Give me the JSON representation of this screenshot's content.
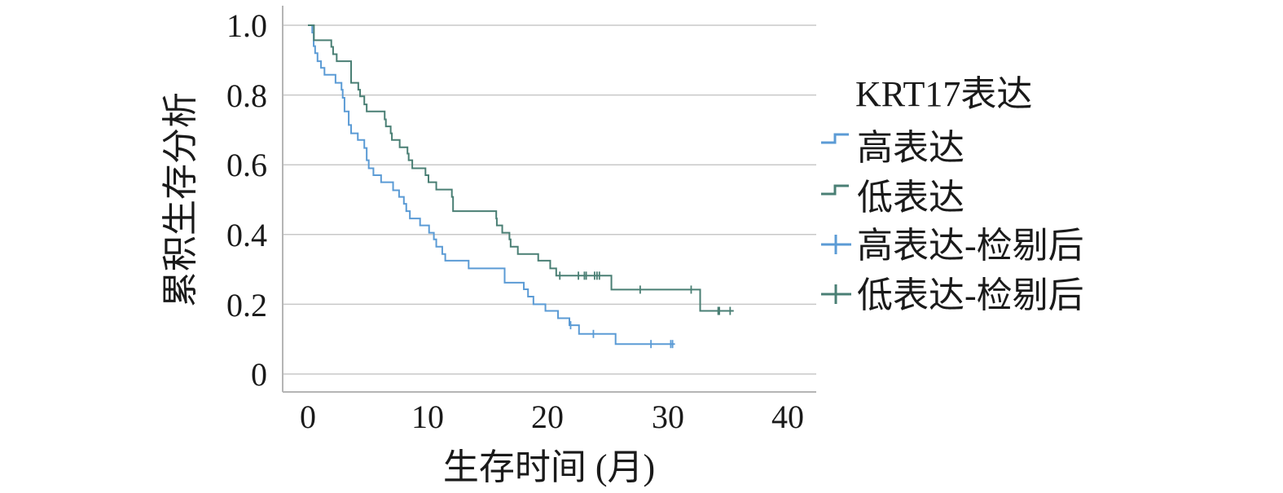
{
  "chart_data": {
    "type": "line",
    "subtype": "kaplan-meier",
    "title": "",
    "xlabel": "生存时间 (月)",
    "ylabel": "累积生存分析",
    "xlim": [
      0,
      40
    ],
    "ylim": [
      0,
      1.0
    ],
    "xticks": [
      "0",
      "10",
      "20",
      "30",
      "40"
    ],
    "yticks": [
      "0",
      "0.2",
      "0.4",
      "0.6",
      "0.8",
      "1.0"
    ],
    "grid": "horizontal",
    "legend": {
      "title": "KRT17表达",
      "placement": "right",
      "entries": [
        "高表达",
        "低表达",
        "高表达-检剔后",
        "低表达-检剔后"
      ]
    },
    "series": [
      {
        "name": "高表达",
        "color": "#5b9bd5",
        "end": 30.6,
        "steps": [
          [
            0,
            1.0
          ],
          [
            0.36,
            0.979
          ],
          [
            0.48,
            0.94
          ],
          [
            0.6,
            0.92
          ],
          [
            0.8,
            0.897
          ],
          [
            1.09,
            0.878
          ],
          [
            1.38,
            0.858
          ],
          [
            2.3,
            0.835
          ],
          [
            2.8,
            0.815
          ],
          [
            2.9,
            0.792
          ],
          [
            3.05,
            0.753
          ],
          [
            3.4,
            0.714
          ],
          [
            3.6,
            0.69
          ],
          [
            4.16,
            0.671
          ],
          [
            4.7,
            0.648
          ],
          [
            4.9,
            0.613
          ],
          [
            5.07,
            0.59
          ],
          [
            5.46,
            0.57
          ],
          [
            6.1,
            0.55
          ],
          [
            7.1,
            0.527
          ],
          [
            7.6,
            0.508
          ],
          [
            8.0,
            0.488
          ],
          [
            8.2,
            0.467
          ],
          [
            8.5,
            0.446
          ],
          [
            9.35,
            0.426
          ],
          [
            10.1,
            0.405
          ],
          [
            10.5,
            0.386
          ],
          [
            10.7,
            0.365
          ],
          [
            11.2,
            0.344
          ],
          [
            11.45,
            0.325
          ],
          [
            13.4,
            0.303
          ],
          [
            16.4,
            0.262
          ],
          [
            18.0,
            0.243
          ],
          [
            18.35,
            0.222
          ],
          [
            18.8,
            0.2
          ],
          [
            19.8,
            0.181
          ],
          [
            20.85,
            0.16
          ],
          [
            21.8,
            0.14
          ],
          [
            22.6,
            0.115
          ],
          [
            25.65,
            0.086
          ]
        ],
        "censored": [
          21.9,
          23.8,
          28.6,
          30.25,
          30.4
        ]
      },
      {
        "name": "低表达",
        "color": "#4a7f74",
        "end": 35.5,
        "steps": [
          [
            0,
            1.0
          ],
          [
            0.5,
            0.957
          ],
          [
            1.95,
            0.938
          ],
          [
            2.1,
            0.917
          ],
          [
            2.4,
            0.897
          ],
          [
            3.6,
            0.835
          ],
          [
            4.2,
            0.815
          ],
          [
            4.35,
            0.796
          ],
          [
            4.7,
            0.773
          ],
          [
            4.9,
            0.753
          ],
          [
            6.4,
            0.73
          ],
          [
            6.5,
            0.71
          ],
          [
            6.9,
            0.69
          ],
          [
            7.0,
            0.671
          ],
          [
            7.65,
            0.65
          ],
          [
            8.3,
            0.632
          ],
          [
            8.4,
            0.613
          ],
          [
            8.7,
            0.59
          ],
          [
            9.8,
            0.57
          ],
          [
            10.05,
            0.55
          ],
          [
            10.7,
            0.529
          ],
          [
            12.0,
            0.508
          ],
          [
            12.1,
            0.467
          ],
          [
            15.7,
            0.446
          ],
          [
            15.75,
            0.426
          ],
          [
            16.2,
            0.405
          ],
          [
            16.8,
            0.386
          ],
          [
            16.9,
            0.365
          ],
          [
            17.5,
            0.344
          ],
          [
            19.2,
            0.325
          ],
          [
            20.2,
            0.303
          ],
          [
            20.7,
            0.282
          ],
          [
            25.3,
            0.242
          ],
          [
            32.7,
            0.181
          ]
        ],
        "censored": [
          21.0,
          22.55,
          23.05,
          23.2,
          23.9,
          24.1,
          24.3,
          27.7,
          31.95,
          34.2,
          34.3,
          35.2
        ]
      }
    ]
  }
}
